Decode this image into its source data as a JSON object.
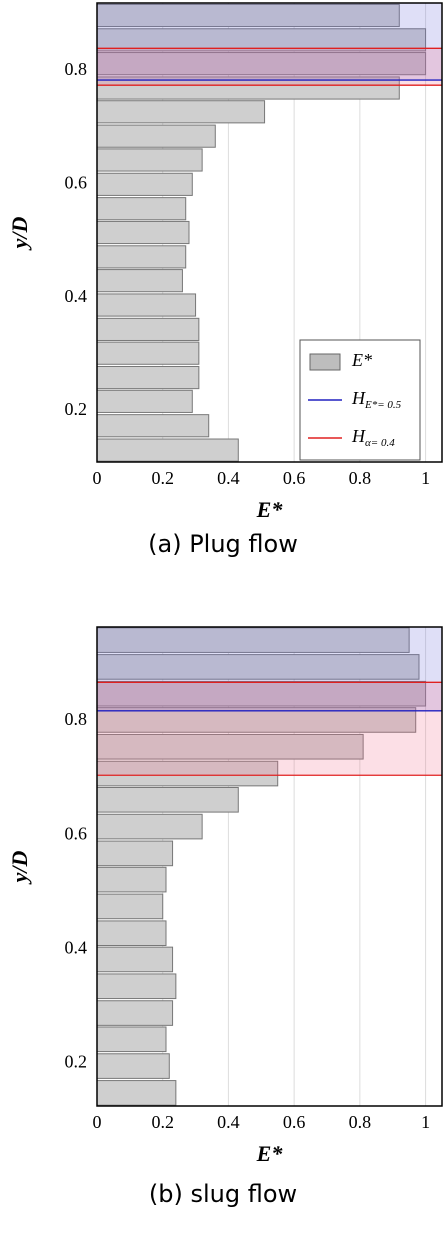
{
  "chart_data": [
    {
      "type": "barh",
      "caption": "(a) Plug flow",
      "xlabel": "E*",
      "ylabel": "y/D",
      "y": [
        0.131,
        0.174,
        0.217,
        0.259,
        0.302,
        0.344,
        0.387,
        0.43,
        0.472,
        0.515,
        0.557,
        0.6,
        0.643,
        0.685,
        0.728,
        0.77,
        0.813,
        0.855,
        0.898
      ],
      "values": [
        0.43,
        0.34,
        0.29,
        0.31,
        0.31,
        0.31,
        0.3,
        0.26,
        0.27,
        0.28,
        0.27,
        0.29,
        0.32,
        0.36,
        0.51,
        0.92,
        1.0,
        1.0,
        0.92
      ],
      "color": "#cfcfcf",
      "xlim": [
        0,
        1.05
      ],
      "xticks": [
        0,
        0.2,
        0.4,
        0.6,
        0.8,
        1
      ],
      "ylim": [
        0.11,
        0.92
      ],
      "yticks": [
        0.2,
        0.4,
        0.6,
        0.8
      ],
      "grid": true,
      "hlines": [
        {
          "value": 0.784,
          "color": "#2020c0"
        },
        {
          "value": 0.84,
          "color": "#e02020"
        },
        {
          "value": 0.775,
          "color": "#e02020"
        }
      ],
      "legend": [
        {
          "main": "E*",
          "color": "#bdbdbd"
        },
        {
          "main": "H",
          "sub": "E*= 0.5",
          "color": "#2020c0"
        },
        {
          "main": "H",
          "sub": "α= 0.4",
          "color": "#e02020"
        }
      ]
    },
    {
      "type": "barh",
      "caption": "(b) slug flow",
      "xlabel": "E*",
      "ylabel": "y/D",
      "y": [
        0.148,
        0.195,
        0.242,
        0.288,
        0.335,
        0.382,
        0.428,
        0.475,
        0.522,
        0.568,
        0.615,
        0.662,
        0.708,
        0.755,
        0.802,
        0.848,
        0.895,
        0.942
      ],
      "values": [
        0.24,
        0.22,
        0.21,
        0.23,
        0.24,
        0.23,
        0.21,
        0.2,
        0.21,
        0.23,
        0.32,
        0.43,
        0.55,
        0.81,
        0.97,
        1.0,
        0.98,
        0.95
      ],
      "color": "#cfcfcf",
      "xlim": [
        0,
        1.05
      ],
      "xticks": [
        0,
        0.2,
        0.4,
        0.6,
        0.8,
        1
      ],
      "ylim": [
        0.125,
        0.965
      ],
      "yticks": [
        0.2,
        0.4,
        0.6,
        0.8
      ],
      "grid": true,
      "hlines": [
        {
          "value": 0.818,
          "color": "#2020c0"
        },
        {
          "value": 0.868,
          "color": "#e02020"
        },
        {
          "value": 0.705,
          "color": "#e02020"
        }
      ]
    }
  ]
}
